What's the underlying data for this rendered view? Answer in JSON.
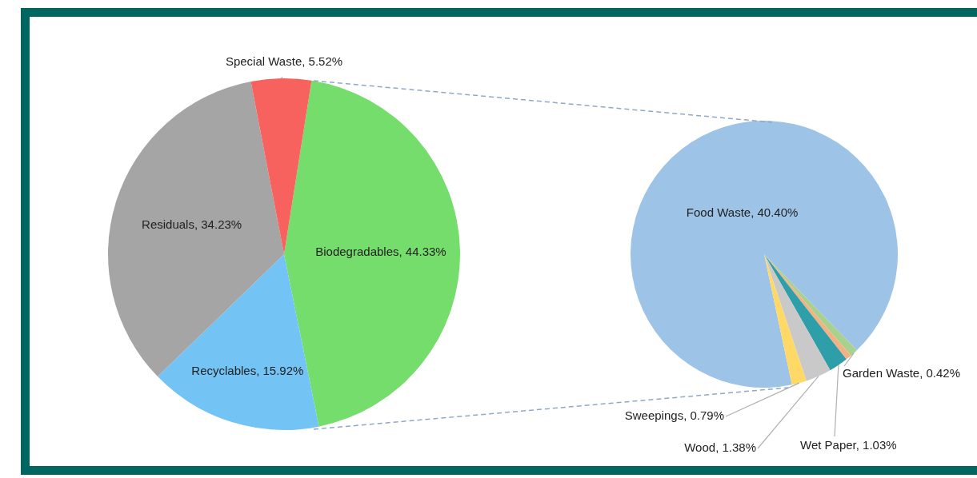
{
  "chart_data": [
    {
      "type": "pie",
      "categories": [
        "Biodegradables",
        "Recyclables",
        "Residuals",
        "Special Waste"
      ],
      "values": [
        44.33,
        15.92,
        34.23,
        5.52
      ],
      "value_labels": [
        "44.33%",
        "15.92%",
        "34.23%",
        "5.52%"
      ],
      "colors": [
        "#75dd6b",
        "#74c3f5",
        "#a5a5a5",
        "#f7625f"
      ]
    },
    {
      "type": "pie",
      "categories": [
        "Food Waste",
        "Garden Waste",
        null,
        "Wet Paper",
        "Wood",
        "Sweepings"
      ],
      "values": [
        40.4,
        0.42,
        0.31,
        1.03,
        1.38,
        0.79
      ],
      "value_labels": [
        "40.40%",
        "0.42%",
        null,
        "1.03%",
        "1.38%",
        "0.79%"
      ],
      "colors": [
        "#9dc3e6",
        "#a9d18e",
        "#f4b183",
        "#2e9fa8",
        "#c9c9c9",
        "#ffd966"
      ]
    }
  ]
}
